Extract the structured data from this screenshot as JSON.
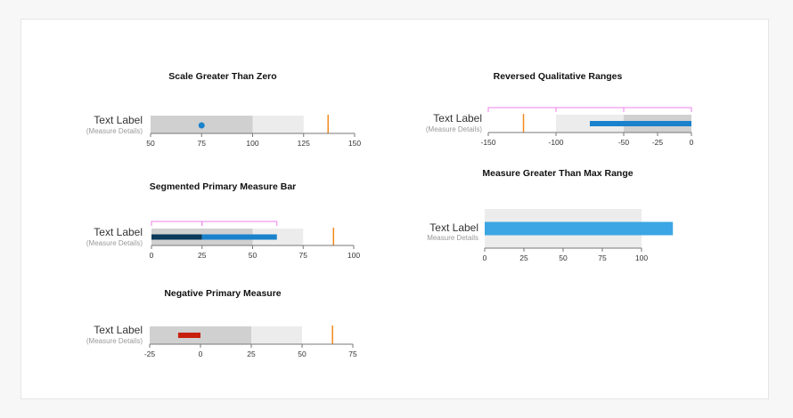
{
  "colors": {
    "range_dark": "#d0d0d0",
    "range_light": "#ececec",
    "measure": "#1a82cc",
    "measure_light": "#3ba6e3",
    "measure_dark": "#0b3a5a",
    "negative": "#c8200e",
    "target": "#f28a1e",
    "bracket": "#ee82ee",
    "axis": "#777777"
  },
  "chart_data": [
    {
      "type": "bullet",
      "title": "Scale Greater Than Zero",
      "label": "Text Label",
      "sublabel": "(Measure Details)",
      "domain": [
        50,
        150
      ],
      "ticks": [
        "50",
        "75",
        "100",
        "125",
        "150"
      ],
      "ranges": [
        {
          "from": 50,
          "to": 100,
          "tone": "dark"
        },
        {
          "from": 100,
          "to": 125,
          "tone": "light"
        }
      ],
      "measure_marker": 75,
      "target": 137
    },
    {
      "type": "bullet",
      "title": "Reversed Qualitative Ranges",
      "label": "Text Label",
      "sublabel": "(Measure Details)",
      "domain": [
        -150,
        0
      ],
      "ticks": [
        "-150",
        "-100",
        "-50",
        "-25",
        "0"
      ],
      "ranges": [
        {
          "from": -100,
          "to": -50,
          "tone": "light"
        },
        {
          "from": -50,
          "to": 0,
          "tone": "dark"
        }
      ],
      "measure_bar": {
        "from": -75,
        "to": 0
      },
      "target": -124,
      "brackets": [
        {
          "from": -150,
          "to": -100
        },
        {
          "from": -100,
          "to": -50
        },
        {
          "from": -50,
          "to": 0
        }
      ]
    },
    {
      "type": "bullet",
      "title": "Segmented Primary Measure Bar",
      "label": "Text Label",
      "sublabel": "(Measure Details)",
      "domain": [
        0,
        100
      ],
      "ticks": [
        "0",
        "25",
        "50",
        "75",
        "100"
      ],
      "ranges": [
        {
          "from": 0,
          "to": 50,
          "tone": "dark"
        },
        {
          "from": 50,
          "to": 75,
          "tone": "light"
        }
      ],
      "segments": [
        {
          "from": 0,
          "to": 25,
          "tone": "dark"
        },
        {
          "from": 25,
          "to": 62,
          "tone": "mid"
        }
      ],
      "target": 90,
      "brackets": [
        {
          "from": 0,
          "to": 25
        },
        {
          "from": 25,
          "to": 62
        }
      ]
    },
    {
      "type": "bullet",
      "title": "Measure Greater Than Max Range",
      "label": "Text Label",
      "sublabel": "Measure Details",
      "domain": [
        0,
        100
      ],
      "ticks": [
        "0",
        "25",
        "50",
        "75",
        "100"
      ],
      "ranges": [
        {
          "from": 0,
          "to": 100,
          "tone": "light"
        }
      ],
      "measure_bar": {
        "from": 0,
        "to": 120
      }
    },
    {
      "type": "bullet",
      "title": "Negative Primary Measure",
      "label": "Text Label",
      "sublabel": "(Measure Details)",
      "domain": [
        -25,
        75
      ],
      "ticks": [
        "-25",
        "0",
        "25",
        "50",
        "75"
      ],
      "ranges": [
        {
          "from": -25,
          "to": 25,
          "tone": "dark"
        },
        {
          "from": 25,
          "to": 50,
          "tone": "light"
        }
      ],
      "measure_bar": {
        "from": -11,
        "to": 0
      },
      "target": 65
    }
  ]
}
